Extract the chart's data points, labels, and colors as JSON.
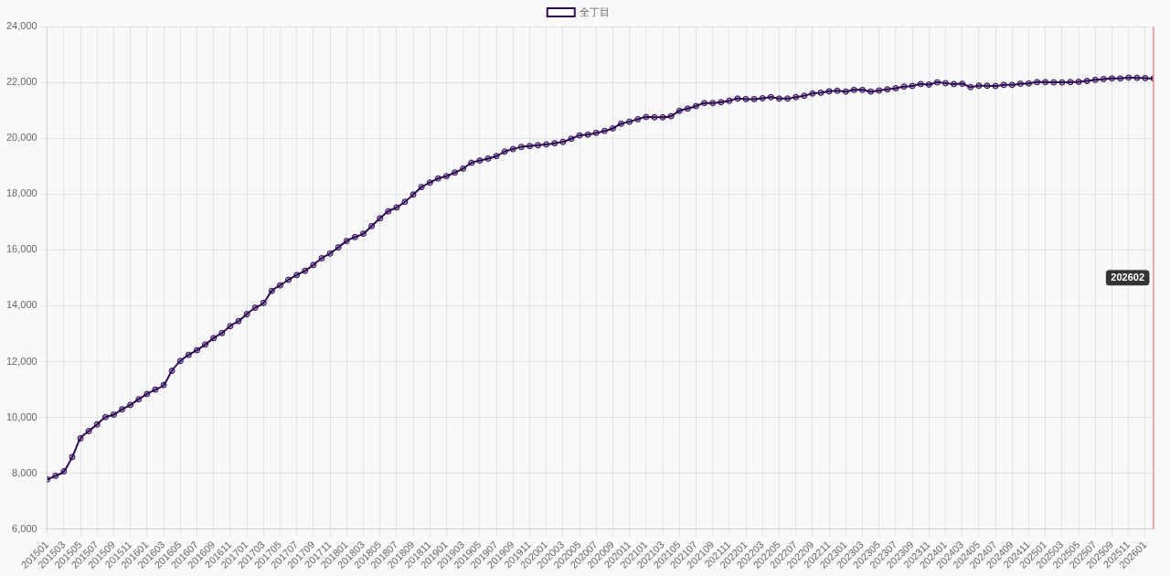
{
  "chart_data": {
    "type": "line",
    "x": [
      "2015-01",
      "2015-02",
      "2015-03",
      "2015-04",
      "2015-05",
      "2015-06",
      "2015-07",
      "2015-08",
      "2015-09",
      "2015-10",
      "2015-11",
      "2015-12",
      "2016-01",
      "2016-02",
      "2016-03",
      "2016-04",
      "2016-05",
      "2016-06",
      "2016-07",
      "2016-08",
      "2016-09",
      "2016-10",
      "2016-11",
      "2016-12",
      "2017-01",
      "2017-02",
      "2017-03",
      "2017-04",
      "2017-05",
      "2017-06",
      "2017-07",
      "2017-08",
      "2017-09",
      "2017-10",
      "2017-11",
      "2017-12",
      "2018-01",
      "2018-02",
      "2018-03",
      "2018-04",
      "2018-05",
      "2018-06",
      "2018-07",
      "2018-08",
      "2018-09",
      "2018-10",
      "2018-11",
      "2018-12",
      "2019-01",
      "2019-02",
      "2019-03",
      "2019-04",
      "2019-05",
      "2019-06",
      "2019-07",
      "2019-08",
      "2019-09",
      "2019-10",
      "2019-11",
      "2019-12",
      "2020-01",
      "2020-02",
      "2020-03",
      "2020-04",
      "2020-05",
      "2020-06",
      "2020-07",
      "2020-08",
      "2020-09",
      "2020-10",
      "2020-11",
      "2020-12",
      "2021-01",
      "2021-02",
      "2021-03",
      "2021-04",
      "2021-05",
      "2021-06",
      "2021-07",
      "2021-08",
      "2021-09",
      "2021-10",
      "2021-11",
      "2021-12",
      "2022-01",
      "2022-02",
      "2022-03",
      "2022-04",
      "2022-05",
      "2022-06",
      "2022-07",
      "2022-08",
      "2022-09",
      "2022-10",
      "2022-11",
      "2022-12",
      "2023-01",
      "2023-02",
      "2023-03",
      "2023-04",
      "2023-05",
      "2023-06",
      "2023-07",
      "2023-08",
      "2023-09",
      "2023-10",
      "2023-11",
      "2023-12",
      "2024-01",
      "2024-02",
      "2024-03",
      "2024-04",
      "2024-05",
      "2024-06",
      "2024-07",
      "2024-08",
      "2024-09",
      "2024-10",
      "2024-11",
      "2024-12",
      "2025-01",
      "2025-02",
      "2025-03",
      "2025-04",
      "2025-05",
      "2025-06",
      "2025-07",
      "2025-08",
      "2025-09",
      "2025-10",
      "2025-11",
      "2025-12",
      "2026-01",
      "2026-02"
    ],
    "series": [
      {
        "name": "全丁目",
        "color": "#2e0854",
        "values": [
          7780,
          7910,
          8070,
          8580,
          9250,
          9510,
          9750,
          10010,
          10100,
          10290,
          10450,
          10650,
          10840,
          11000,
          11160,
          11670,
          12020,
          12240,
          12410,
          12610,
          12840,
          13020,
          13270,
          13450,
          13700,
          13930,
          14100,
          14530,
          14730,
          14930,
          15100,
          15250,
          15460,
          15700,
          15870,
          16090,
          16320,
          16460,
          16580,
          16850,
          17130,
          17380,
          17520,
          17720,
          17980,
          18250,
          18410,
          18560,
          18640,
          18770,
          18910,
          19120,
          19200,
          19270,
          19360,
          19520,
          19610,
          19690,
          19720,
          19750,
          19780,
          19820,
          19870,
          19980,
          20100,
          20130,
          20190,
          20260,
          20350,
          20520,
          20590,
          20680,
          20760,
          20750,
          20750,
          20790,
          20980,
          21060,
          21150,
          21260,
          21260,
          21290,
          21340,
          21420,
          21400,
          21400,
          21430,
          21470,
          21420,
          21420,
          21470,
          21520,
          21600,
          21630,
          21680,
          21700,
          21670,
          21730,
          21730,
          21670,
          21710,
          21750,
          21790,
          21850,
          21870,
          21940,
          21920,
          22000,
          21970,
          21940,
          21950,
          21830,
          21880,
          21880,
          21870,
          21910,
          21910,
          21950,
          21960,
          22010,
          22010,
          22000,
          22000,
          22010,
          22020,
          22050,
          22090,
          22120,
          22140,
          22140,
          22170,
          22160,
          22150,
          22140
        ]
      }
    ],
    "xlim": [
      "2015-01",
      "2026-02"
    ],
    "xticks": [
      {
        "value": "2015-01",
        "label": "201501"
      },
      {
        "value": "2015-03",
        "label": "201503"
      },
      {
        "value": "2015-05",
        "label": "201505"
      },
      {
        "value": "2015-07",
        "label": "201507"
      },
      {
        "value": "2015-09",
        "label": "201509"
      },
      {
        "value": "2015-11",
        "label": "201511"
      },
      {
        "value": "2016-01",
        "label": "201601"
      },
      {
        "value": "2016-03",
        "label": "201603"
      },
      {
        "value": "2016-05",
        "label": "201605"
      },
      {
        "value": "2016-07",
        "label": "201607"
      },
      {
        "value": "2016-09",
        "label": "201609"
      },
      {
        "value": "2016-11",
        "label": "201611"
      },
      {
        "value": "2017-01",
        "label": "201701"
      },
      {
        "value": "2017-03",
        "label": "201703"
      },
      {
        "value": "2017-05",
        "label": "201705"
      },
      {
        "value": "2017-07",
        "label": "201707"
      },
      {
        "value": "2017-09",
        "label": "201709"
      },
      {
        "value": "2017-11",
        "label": "201711"
      },
      {
        "value": "2018-01",
        "label": "201801"
      },
      {
        "value": "2018-03",
        "label": "201803"
      },
      {
        "value": "2018-05",
        "label": "201805"
      },
      {
        "value": "2018-07",
        "label": "201807"
      },
      {
        "value": "2018-09",
        "label": "201809"
      },
      {
        "value": "2018-11",
        "label": "201811"
      },
      {
        "value": "2019-01",
        "label": "201901"
      },
      {
        "value": "2019-03",
        "label": "201903"
      },
      {
        "value": "2019-05",
        "label": "201905"
      },
      {
        "value": "2019-07",
        "label": "201907"
      },
      {
        "value": "2019-09",
        "label": "201909"
      },
      {
        "value": "2019-11",
        "label": "201911"
      },
      {
        "value": "2020-01",
        "label": "202001"
      },
      {
        "value": "2020-03",
        "label": "202003"
      },
      {
        "value": "2020-05",
        "label": "202005"
      },
      {
        "value": "2020-07",
        "label": "202007"
      },
      {
        "value": "2020-09",
        "label": "202009"
      },
      {
        "value": "2020-11",
        "label": "202011"
      },
      {
        "value": "2021-01",
        "label": "202101"
      },
      {
        "value": "2021-03",
        "label": "202103"
      },
      {
        "value": "2021-05",
        "label": "202105"
      },
      {
        "value": "2021-07",
        "label": "202107"
      },
      {
        "value": "2021-09",
        "label": "202109"
      },
      {
        "value": "2021-11",
        "label": "202111"
      },
      {
        "value": "2022-01",
        "label": "202201"
      },
      {
        "value": "2022-03",
        "label": "202203"
      },
      {
        "value": "2022-05",
        "label": "202205"
      },
      {
        "value": "2022-07",
        "label": "202207"
      },
      {
        "value": "2022-09",
        "label": "202209"
      },
      {
        "value": "2022-11",
        "label": "202211"
      },
      {
        "value": "2023-01",
        "label": "202301"
      },
      {
        "value": "2023-03",
        "label": "202303"
      },
      {
        "value": "2023-05",
        "label": "202305"
      },
      {
        "value": "2023-07",
        "label": "202307"
      },
      {
        "value": "2023-09",
        "label": "202309"
      },
      {
        "value": "2023-11",
        "label": "202311"
      },
      {
        "value": "2024-01",
        "label": "202401"
      },
      {
        "value": "2024-03",
        "label": "202403"
      },
      {
        "value": "2024-05",
        "label": "202405"
      },
      {
        "value": "2024-07",
        "label": "202407"
      },
      {
        "value": "2024-09",
        "label": "202409"
      },
      {
        "value": "2024-11",
        "label": "202411"
      },
      {
        "value": "2025-01",
        "label": "202501"
      },
      {
        "value": "2025-03",
        "label": "202503"
      },
      {
        "value": "2025-05",
        "label": "202505"
      },
      {
        "value": "2025-07",
        "label": "202507"
      },
      {
        "value": "2025-09",
        "label": "202509"
      },
      {
        "value": "2025-11",
        "label": "202511"
      },
      {
        "value": "2026-01",
        "label": "202601"
      }
    ],
    "ylim": [
      6000,
      24000
    ],
    "yticks": [
      {
        "value": 6000,
        "label": "6,000"
      },
      {
        "value": 8000,
        "label": "8,000"
      },
      {
        "value": 10000,
        "label": "10,000"
      },
      {
        "value": 12000,
        "label": "12,000"
      },
      {
        "value": 14000,
        "label": "14,000"
      },
      {
        "value": 16000,
        "label": "16,000"
      },
      {
        "value": 18000,
        "label": "18,000"
      },
      {
        "value": 20000,
        "label": "20,000"
      },
      {
        "value": 22000,
        "label": "22,000"
      },
      {
        "value": 24000,
        "label": "24,000"
      }
    ],
    "ref_lines": [
      {
        "axis": "x",
        "value": "2026-02",
        "label": "202602",
        "color": "#ee8a8a"
      }
    ],
    "grid": true,
    "legend": "top",
    "marker": "circle"
  }
}
